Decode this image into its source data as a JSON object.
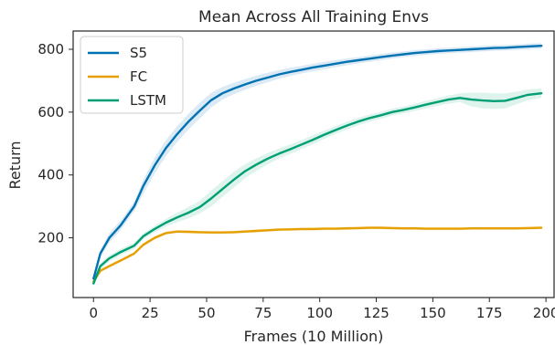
{
  "chart_data": {
    "type": "line",
    "title": "Mean Across All Training Envs",
    "xlabel": "Frames (10 Million)",
    "ylabel": "Return",
    "xlim": [
      -9,
      204
    ],
    "ylim": [
      10,
      858
    ],
    "xticks": [
      0,
      25,
      50,
      75,
      100,
      125,
      150,
      175,
      200
    ],
    "yticks": [
      200,
      400,
      600,
      800
    ],
    "grid": false,
    "legend_position": "top-left",
    "series": [
      {
        "name": "S5",
        "color": "#0072b2",
        "band_color": "#cfe3f1",
        "x": [
          0,
          3,
          7,
          12,
          18,
          22,
          27,
          32,
          37,
          42,
          47,
          52,
          57,
          62,
          67,
          72,
          77,
          82,
          87,
          92,
          97,
          102,
          107,
          112,
          117,
          122,
          127,
          132,
          137,
          142,
          147,
          152,
          157,
          162,
          167,
          172,
          177,
          182,
          187,
          192,
          198
        ],
        "y": [
          70,
          150,
          200,
          240,
          300,
          365,
          430,
          485,
          530,
          570,
          605,
          638,
          660,
          675,
          688,
          700,
          710,
          720,
          728,
          735,
          742,
          748,
          754,
          760,
          765,
          770,
          775,
          780,
          784,
          788,
          791,
          794,
          796,
          798,
          800,
          802,
          804,
          805,
          807,
          809,
          811
        ],
        "band": [
          [
            60,
            80
          ],
          [
            138,
            162
          ],
          [
            185,
            215
          ],
          [
            225,
            255
          ],
          [
            285,
            315
          ],
          [
            340,
            385
          ],
          [
            405,
            455
          ],
          [
            460,
            510
          ],
          [
            505,
            555
          ],
          [
            545,
            595
          ],
          [
            580,
            630
          ],
          [
            615,
            661
          ],
          [
            640,
            680
          ],
          [
            657,
            693
          ],
          [
            671,
            705
          ],
          [
            684,
            716
          ],
          [
            695,
            725
          ],
          [
            706,
            734
          ],
          [
            715,
            741
          ],
          [
            723,
            747
          ],
          [
            730,
            754
          ],
          [
            736,
            760
          ],
          [
            743,
            765
          ],
          [
            749,
            771
          ],
          [
            755,
            775
          ],
          [
            760,
            780
          ],
          [
            765,
            785
          ],
          [
            770,
            790
          ],
          [
            775,
            793
          ],
          [
            779,
            797
          ],
          [
            782,
            800
          ],
          [
            785,
            803
          ],
          [
            787,
            805
          ],
          [
            789,
            807
          ],
          [
            791,
            809
          ],
          [
            793,
            811
          ],
          [
            795,
            813
          ],
          [
            796,
            814
          ],
          [
            798,
            816
          ],
          [
            800,
            818
          ],
          [
            802,
            820
          ]
        ]
      },
      {
        "name": "FC",
        "color": "#e69f00",
        "band_color": "#fbecd0",
        "x": [
          0,
          3,
          7,
          12,
          18,
          22,
          27,
          32,
          37,
          42,
          47,
          52,
          57,
          62,
          67,
          72,
          77,
          82,
          87,
          92,
          97,
          102,
          107,
          112,
          117,
          122,
          127,
          132,
          137,
          142,
          147,
          152,
          157,
          162,
          167,
          172,
          177,
          182,
          187,
          192,
          198
        ],
        "y": [
          60,
          95,
          110,
          128,
          150,
          178,
          200,
          215,
          220,
          219,
          218,
          217,
          217,
          218,
          220,
          222,
          224,
          226,
          227,
          228,
          228,
          229,
          229,
          230,
          231,
          232,
          232,
          231,
          230,
          230,
          229,
          229,
          229,
          229,
          230,
          230,
          230,
          230,
          230,
          231,
          232
        ],
        "band": [
          [
            55,
            65
          ],
          [
            90,
            100
          ],
          [
            105,
            115
          ],
          [
            123,
            133
          ],
          [
            145,
            155
          ],
          [
            172,
            184
          ],
          [
            194,
            206
          ],
          [
            210,
            220
          ],
          [
            215,
            225
          ],
          [
            214,
            224
          ],
          [
            213,
            223
          ],
          [
            212,
            222
          ],
          [
            212,
            222
          ],
          [
            213,
            223
          ],
          [
            215,
            225
          ],
          [
            217,
            227
          ],
          [
            219,
            229
          ],
          [
            221,
            231
          ],
          [
            222,
            232
          ],
          [
            223,
            233
          ],
          [
            223,
            233
          ],
          [
            224,
            234
          ],
          [
            224,
            234
          ],
          [
            225,
            235
          ],
          [
            226,
            236
          ],
          [
            227,
            237
          ],
          [
            227,
            237
          ],
          [
            226,
            236
          ],
          [
            225,
            235
          ],
          [
            225,
            235
          ],
          [
            224,
            234
          ],
          [
            224,
            234
          ],
          [
            224,
            234
          ],
          [
            224,
            234
          ],
          [
            225,
            235
          ],
          [
            225,
            235
          ],
          [
            225,
            235
          ],
          [
            225,
            235
          ],
          [
            225,
            235
          ],
          [
            226,
            236
          ],
          [
            227,
            237
          ]
        ]
      },
      {
        "name": "LSTM",
        "color": "#009e73",
        "band_color": "#d2efe6",
        "x": [
          0,
          3,
          7,
          12,
          18,
          22,
          27,
          32,
          37,
          42,
          47,
          52,
          57,
          62,
          67,
          72,
          77,
          82,
          87,
          92,
          97,
          102,
          107,
          112,
          117,
          122,
          127,
          132,
          137,
          142,
          147,
          152,
          157,
          162,
          167,
          172,
          177,
          182,
          187,
          192,
          198
        ],
        "y": [
          55,
          110,
          135,
          155,
          175,
          205,
          228,
          248,
          265,
          280,
          298,
          325,
          355,
          385,
          412,
          433,
          452,
          468,
          482,
          497,
          512,
          528,
          543,
          557,
          570,
          581,
          590,
          600,
          607,
          615,
          624,
          632,
          640,
          645,
          640,
          637,
          635,
          636,
          645,
          655,
          660
        ],
        "band": [
          [
            50,
            60
          ],
          [
            100,
            120
          ],
          [
            125,
            145
          ],
          [
            145,
            165
          ],
          [
            165,
            185
          ],
          [
            195,
            215
          ],
          [
            218,
            238
          ],
          [
            236,
            260
          ],
          [
            250,
            280
          ],
          [
            262,
            298
          ],
          [
            278,
            318
          ],
          [
            300,
            350
          ],
          [
            330,
            380
          ],
          [
            360,
            410
          ],
          [
            390,
            434
          ],
          [
            413,
            453
          ],
          [
            434,
            470
          ],
          [
            452,
            484
          ],
          [
            467,
            497
          ],
          [
            483,
            511
          ],
          [
            498,
            526
          ],
          [
            515,
            541
          ],
          [
            530,
            556
          ],
          [
            545,
            569
          ],
          [
            558,
            582
          ],
          [
            570,
            592
          ],
          [
            579,
            601
          ],
          [
            589,
            611
          ],
          [
            596,
            618
          ],
          [
            604,
            626
          ],
          [
            612,
            636
          ],
          [
            620,
            644
          ],
          [
            627,
            653
          ],
          [
            632,
            660
          ],
          [
            618,
            662
          ],
          [
            612,
            662
          ],
          [
            610,
            660
          ],
          [
            612,
            660
          ],
          [
            625,
            665
          ],
          [
            638,
            672
          ],
          [
            645,
            675
          ]
        ]
      }
    ]
  }
}
